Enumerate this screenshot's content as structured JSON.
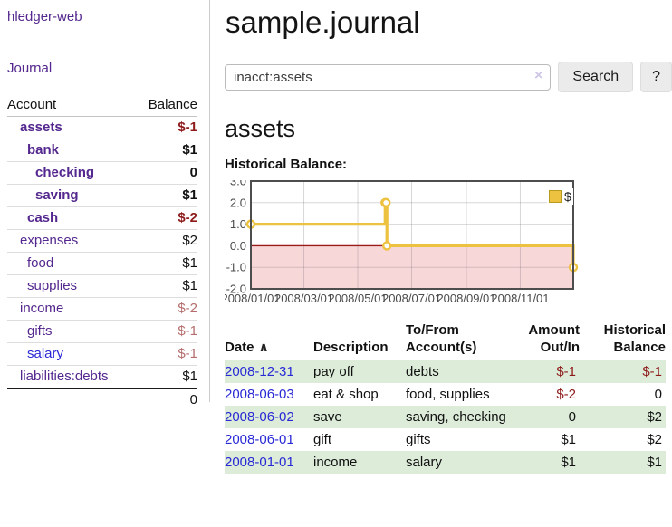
{
  "app": {
    "brand": "hledger-web"
  },
  "nav": {
    "journal": "Journal"
  },
  "sidebar": {
    "headers": {
      "account": "Account",
      "balance": "Balance"
    },
    "accounts": [
      {
        "name": "assets",
        "balance": "$-1"
      },
      {
        "name": "bank",
        "balance": "$1"
      },
      {
        "name": "checking",
        "balance": "0"
      },
      {
        "name": "saving",
        "balance": "$1"
      },
      {
        "name": "cash",
        "balance": "$-2"
      },
      {
        "name": "expenses",
        "balance": "$2"
      },
      {
        "name": "food",
        "balance": "$1"
      },
      {
        "name": "supplies",
        "balance": "$1"
      },
      {
        "name": "income",
        "balance": "$-2"
      },
      {
        "name": "gifts",
        "balance": "$-1"
      },
      {
        "name": "salary",
        "balance": "$-1"
      },
      {
        "name": "liabilities:debts",
        "balance": "$1"
      }
    ],
    "total": "0"
  },
  "header": {
    "title": "sample.journal"
  },
  "search": {
    "value": "inacct:assets",
    "clear_icon": "×",
    "button_label": "Search",
    "help_label": "?"
  },
  "account_page": {
    "heading": "assets",
    "chart_title": "Historical Balance:"
  },
  "chart_data": {
    "type": "line",
    "style": "step",
    "title": "Historical Balance",
    "series": [
      {
        "name": "$",
        "color": "#edc240",
        "points": [
          [
            "2008-01-01",
            1
          ],
          [
            "2008-06-01",
            2
          ],
          [
            "2008-06-02",
            2
          ],
          [
            "2008-06-03",
            0
          ],
          [
            "2008-12-31",
            -1
          ]
        ]
      }
    ],
    "ylim": [
      -2,
      3
    ],
    "yticks": [
      "3.0",
      "2.0",
      "1.0",
      "0.0",
      "-1.0",
      "-2.0"
    ],
    "xticks": [
      "2008/01/01",
      "2008/03/01",
      "2008/05/01",
      "2008/07/01",
      "2008/09/01",
      "2008/11/01"
    ],
    "x_range": [
      "2008-01-01",
      "2008-12-31"
    ],
    "grid": true,
    "legend": {
      "position": "top-right",
      "label": "$"
    },
    "negative_region_color": "#f8d7d9",
    "zero_line_color": "#9c1b1b"
  },
  "register": {
    "headers": {
      "date": "Date",
      "description": "Description",
      "accounts": "To/From Account(s)",
      "amount": "Amount Out/In",
      "balance": "Historical Balance"
    },
    "sort_icon": "∧",
    "rows": [
      {
        "date": "2008-12-31",
        "description": "pay off",
        "accounts": "debts",
        "amount": "$-1",
        "balance": "$-1"
      },
      {
        "date": "2008-06-03",
        "description": "eat & shop",
        "accounts": "food, supplies",
        "amount": "$-2",
        "balance": "0"
      },
      {
        "date": "2008-06-02",
        "description": "save",
        "accounts": "saving, checking",
        "amount": "0",
        "balance": "$2"
      },
      {
        "date": "2008-06-01",
        "description": "gift",
        "accounts": "gifts",
        "amount": "$1",
        "balance": "$2"
      },
      {
        "date": "2008-01-01",
        "description": "income",
        "accounts": "salary",
        "amount": "$1",
        "balance": "$1"
      }
    ]
  }
}
